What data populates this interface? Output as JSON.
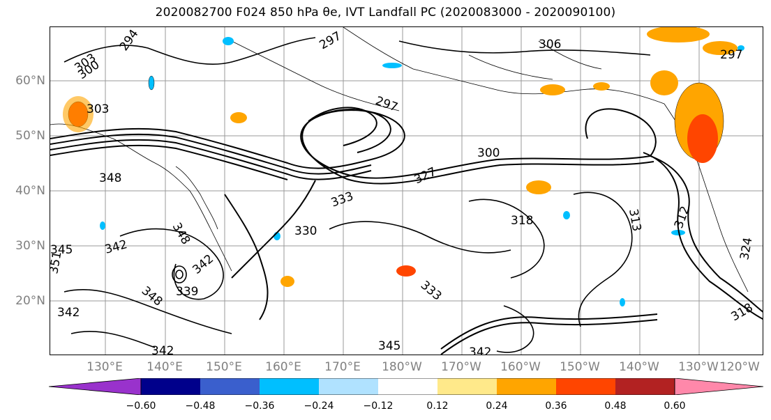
{
  "title": "2020082700 F024 850 hPa θe, IVT Landfall PC (2020083000 - 2020090100)",
  "map": {
    "lat_labels": [
      "60°N",
      "50°N",
      "40°N",
      "30°N",
      "20°N"
    ],
    "lon_labels": [
      "130°E",
      "140°E",
      "150°E",
      "160°E",
      "170°E",
      "180°W",
      "170°W",
      "160°W",
      "150°W",
      "140°W",
      "130°W",
      "120°W"
    ],
    "contour_labels": [
      "294",
      "297",
      "306",
      "303",
      "300",
      "303",
      "297",
      "300",
      "297",
      "348",
      "333",
      "327",
      "330",
      "318",
      "313",
      "312",
      "342",
      "345",
      "339",
      "348",
      "342",
      "342",
      "345",
      "342",
      "333",
      "324",
      "318",
      "342",
      "351",
      "348"
    ]
  },
  "colorbar": {
    "colors": [
      "#9932cc",
      "#00008b",
      "#3a5fcd",
      "#00bfff",
      "#b0e2ff",
      "#ffffff",
      "#ffe98a",
      "#ffa500",
      "#ff4500",
      "#b22222",
      "#ff88aa"
    ],
    "tick_labels": [
      "−0.60",
      "−0.48",
      "−0.36",
      "−0.24",
      "−0.12",
      "0.12",
      "0.24",
      "0.36",
      "0.48",
      "0.60"
    ]
  }
}
